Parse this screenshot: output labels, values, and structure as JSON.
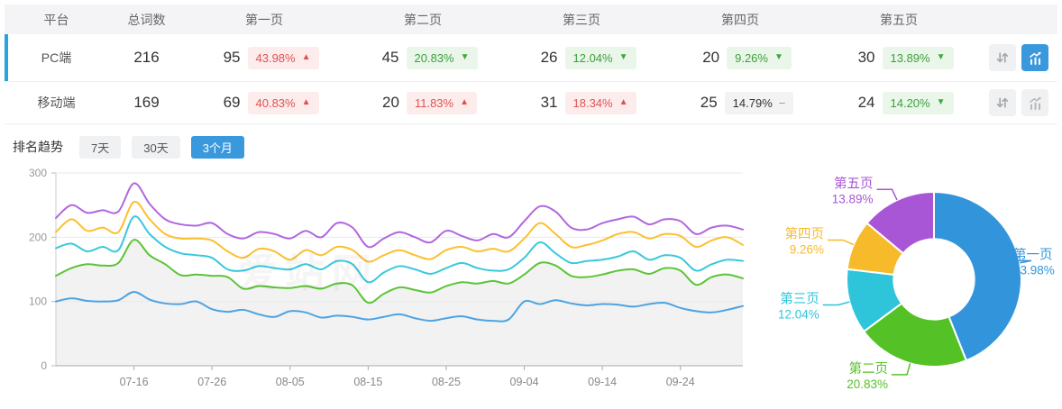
{
  "table": {
    "headers": [
      "平台",
      "总词数",
      "第一页",
      "第二页",
      "第三页",
      "第四页",
      "第五页"
    ],
    "rows": [
      {
        "platform": "PC端",
        "total": "216",
        "active": true,
        "pages": [
          {
            "count": "95",
            "percent": "43.98%",
            "trend": "up"
          },
          {
            "count": "45",
            "percent": "20.83%",
            "trend": "down"
          },
          {
            "count": "26",
            "percent": "12.04%",
            "trend": "down"
          },
          {
            "count": "20",
            "percent": "9.26%",
            "trend": "down"
          },
          {
            "count": "30",
            "percent": "13.89%",
            "trend": "down"
          }
        ],
        "chart_selected": true
      },
      {
        "platform": "移动端",
        "total": "169",
        "active": false,
        "pages": [
          {
            "count": "69",
            "percent": "40.83%",
            "trend": "up"
          },
          {
            "count": "20",
            "percent": "11.83%",
            "trend": "up"
          },
          {
            "count": "31",
            "percent": "18.34%",
            "trend": "up"
          },
          {
            "count": "25",
            "percent": "14.79%",
            "trend": "flat"
          },
          {
            "count": "24",
            "percent": "14.20%",
            "trend": "down"
          }
        ],
        "chart_selected": false
      }
    ]
  },
  "trend": {
    "title": "排名趋势",
    "tabs": [
      {
        "label": "7天",
        "active": false
      },
      {
        "label": "30天",
        "active": false
      },
      {
        "label": "3个月",
        "active": true
      }
    ]
  },
  "watermark": "爱站网",
  "icons": {
    "up": "▲",
    "down": "▼",
    "flat": "−",
    "row_icons": [
      "sort-icon",
      "trend-chart-icon"
    ]
  },
  "colors": {
    "accent_blue": "#29a3dc",
    "tab_active": "#3a99dd",
    "badge_up_text": "#e05252",
    "badge_up_bg": "#fdecec",
    "badge_down_text": "#3da03d",
    "badge_down_bg": "#eaf6e9",
    "badge_flat_bg": "#f3f3f3"
  },
  "chart_data": [
    {
      "type": "line",
      "title": "排名趋势 3个月 (PC端)",
      "ylim": [
        0,
        300
      ],
      "yticks": [
        0,
        100,
        200,
        300
      ],
      "x_ticks": [
        "07-16",
        "07-26",
        "08-05",
        "08-15",
        "08-25",
        "09-04",
        "09-14",
        "09-24"
      ],
      "x_tick_indices": [
        5,
        10,
        15,
        20,
        25,
        30,
        35,
        40
      ],
      "grid": true,
      "legend_position": "none",
      "series": [
        {
          "name": "第一页",
          "color": "#4da3e3",
          "area": false,
          "values": [
            100,
            105,
            101,
            100,
            102,
            115,
            103,
            97,
            96,
            100,
            88,
            84,
            87,
            80,
            76,
            85,
            83,
            75,
            78,
            76,
            72,
            76,
            80,
            74,
            70,
            74,
            77,
            72,
            70,
            72,
            100,
            96,
            102,
            97,
            94,
            96,
            95,
            92,
            96,
            98,
            90,
            85,
            83,
            87,
            93
          ]
        },
        {
          "name": "第二页",
          "color": "#5cc436",
          "area": true,
          "values": [
            140,
            152,
            158,
            156,
            160,
            196,
            172,
            158,
            141,
            142,
            140,
            138,
            120,
            124,
            122,
            121,
            124,
            120,
            128,
            125,
            98,
            112,
            122,
            118,
            114,
            124,
            130,
            128,
            132,
            128,
            142,
            160,
            156,
            140,
            138,
            142,
            148,
            150,
            143,
            152,
            148,
            126,
            138,
            142,
            136
          ]
        },
        {
          "name": "第三页",
          "color": "#38c9dc",
          "area": false,
          "values": [
            183,
            190,
            178,
            185,
            180,
            232,
            205,
            185,
            175,
            172,
            168,
            150,
            148,
            155,
            152,
            150,
            158,
            150,
            163,
            158,
            130,
            145,
            155,
            150,
            143,
            152,
            160,
            152,
            148,
            150,
            168,
            192,
            175,
            160,
            163,
            165,
            170,
            178,
            165,
            172,
            168,
            148,
            158,
            165,
            163
          ]
        },
        {
          "name": "第四页",
          "color": "#fbc02f",
          "area": false,
          "values": [
            208,
            228,
            210,
            215,
            208,
            255,
            228,
            205,
            198,
            198,
            195,
            178,
            168,
            182,
            178,
            165,
            180,
            172,
            185,
            180,
            162,
            172,
            180,
            172,
            166,
            180,
            185,
            178,
            182,
            178,
            198,
            222,
            205,
            185,
            188,
            195,
            205,
            208,
            198,
            205,
            202,
            185,
            195,
            200,
            188
          ]
        },
        {
          "name": "第五页",
          "color": "#b267dd",
          "area": false,
          "values": [
            230,
            250,
            238,
            242,
            240,
            284,
            252,
            228,
            220,
            218,
            222,
            205,
            198,
            208,
            205,
            198,
            210,
            200,
            222,
            215,
            185,
            198,
            208,
            200,
            192,
            210,
            202,
            195,
            205,
            200,
            225,
            248,
            240,
            215,
            212,
            222,
            228,
            232,
            220,
            228,
            225,
            205,
            215,
            218,
            212
          ]
        }
      ]
    },
    {
      "type": "pie",
      "inner_radius_ratio": 0.46,
      "slices": [
        {
          "label": "第一页",
          "value": 43.98,
          "percent": "43.98%",
          "color": "#3295db"
        },
        {
          "label": "第二页",
          "value": 20.83,
          "percent": "20.83%",
          "color": "#54c226"
        },
        {
          "label": "第三页",
          "value": 12.04,
          "percent": "12.04%",
          "color": "#2ec5da"
        },
        {
          "label": "第四页",
          "value": 9.26,
          "percent": "9.26%",
          "color": "#f7ba2a"
        },
        {
          "label": "第五页",
          "value": 13.89,
          "percent": "13.89%",
          "color": "#a855d6"
        }
      ]
    }
  ]
}
